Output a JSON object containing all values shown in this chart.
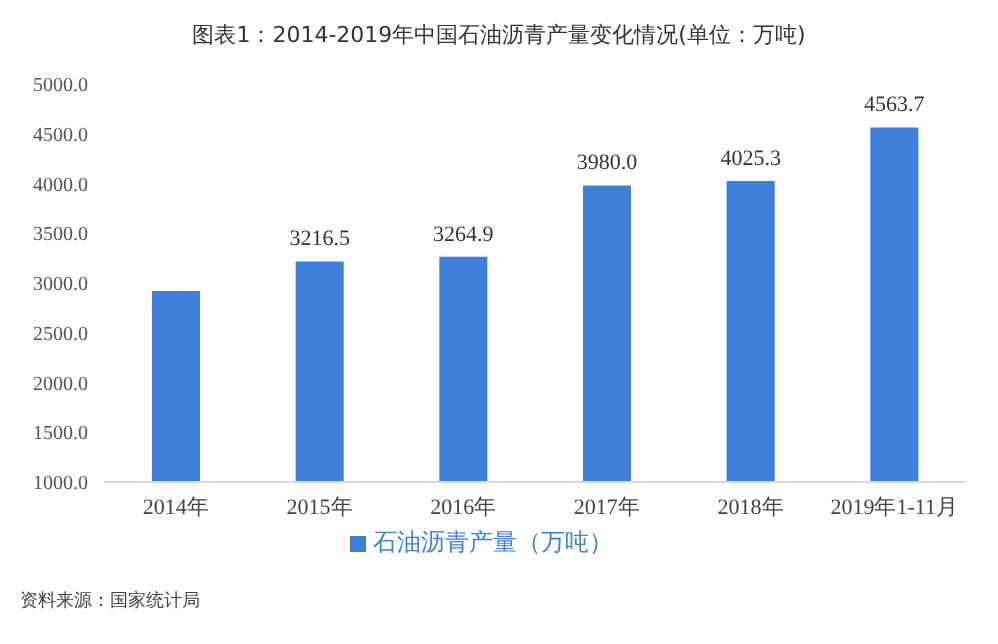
{
  "chart_data": {
    "type": "bar",
    "title": "图表1：2014-2019年中国石油沥青产量变化情况(单位：万吨)",
    "categories": [
      "2014年",
      "2015年",
      "2016年",
      "2017年",
      "2018年",
      "2019年1-11月"
    ],
    "series": [
      {
        "name": "石油沥青产量（万吨）",
        "color": "#3d7fdb",
        "values": [
          2920,
          3216.5,
          3264.9,
          3980.0,
          4025.3,
          4563.7
        ],
        "value_labels": [
          null,
          "3216.5",
          "3264.9",
          "3980.0",
          "4025.3",
          "4563.7"
        ]
      }
    ],
    "ylim": [
      1000,
      5000
    ],
    "yticks": [
      {
        "value": 1000,
        "label": "1000.0"
      },
      {
        "value": 1500,
        "label": "1500.0"
      },
      {
        "value": 2000,
        "label": "2000.0"
      },
      {
        "value": 2500,
        "label": "2500.0"
      },
      {
        "value": 3000,
        "label": "3000.0"
      },
      {
        "value": 3500,
        "label": "3500.0"
      },
      {
        "value": 4000,
        "label": "4000.0"
      },
      {
        "value": 4500,
        "label": "4500.0"
      },
      {
        "value": 5000,
        "label": "5000.0"
      }
    ],
    "grid": false,
    "legend": "bottom",
    "annotations": [
      "资料来源：国家统计局"
    ]
  }
}
